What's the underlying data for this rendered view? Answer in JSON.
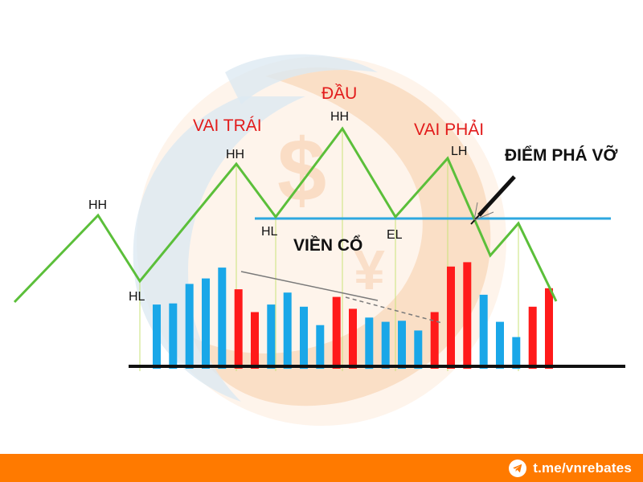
{
  "colors": {
    "trend_line": "#5bbf3a",
    "neckline": "#2ea8e0",
    "bar_blue": "#1aa7e8",
    "bar_red": "#ff1a1a",
    "section_label": "#e21b1b",
    "point_label": "#111111",
    "footer_bg": "#ff7a00",
    "watermark_orange": "#f7c79a",
    "watermark_blue": "#d7e6f0"
  },
  "labels": {
    "left_shoulder": "VAI TRÁI",
    "head": "ĐẦU",
    "right_shoulder": "VAI PHẢI",
    "neckline": "VIỀN CỔ",
    "breakout": "ĐIỂM PHÁ VỠ"
  },
  "points": [
    {
      "label": "HH"
    },
    {
      "label": "HL"
    },
    {
      "label": "HH"
    },
    {
      "label": "HL"
    },
    {
      "label": "HH"
    },
    {
      "label": "EL"
    },
    {
      "label": "LH"
    }
  ],
  "volume_bars": [
    {
      "value": 0.57,
      "color": "blue"
    },
    {
      "value": 0.58,
      "color": "blue"
    },
    {
      "value": 0.76,
      "color": "blue"
    },
    {
      "value": 0.81,
      "color": "blue"
    },
    {
      "value": 0.91,
      "color": "blue"
    },
    {
      "value": 0.71,
      "color": "red"
    },
    {
      "value": 0.5,
      "color": "red"
    },
    {
      "value": 0.57,
      "color": "blue"
    },
    {
      "value": 0.68,
      "color": "blue"
    },
    {
      "value": 0.55,
      "color": "blue"
    },
    {
      "value": 0.38,
      "color": "blue"
    },
    {
      "value": 0.64,
      "color": "red"
    },
    {
      "value": 0.53,
      "color": "red"
    },
    {
      "value": 0.45,
      "color": "blue"
    },
    {
      "value": 0.41,
      "color": "blue"
    },
    {
      "value": 0.42,
      "color": "blue"
    },
    {
      "value": 0.33,
      "color": "blue"
    },
    {
      "value": 0.5,
      "color": "red"
    },
    {
      "value": 0.92,
      "color": "red"
    },
    {
      "value": 0.96,
      "color": "red"
    },
    {
      "value": 0.66,
      "color": "blue"
    },
    {
      "value": 0.41,
      "color": "blue"
    },
    {
      "value": 0.27,
      "color": "blue"
    },
    {
      "value": 0.55,
      "color": "red"
    },
    {
      "value": 0.72,
      "color": "red"
    }
  ],
  "footer": {
    "link_text": "t.me/vnrebates",
    "icon": "telegram-icon"
  }
}
